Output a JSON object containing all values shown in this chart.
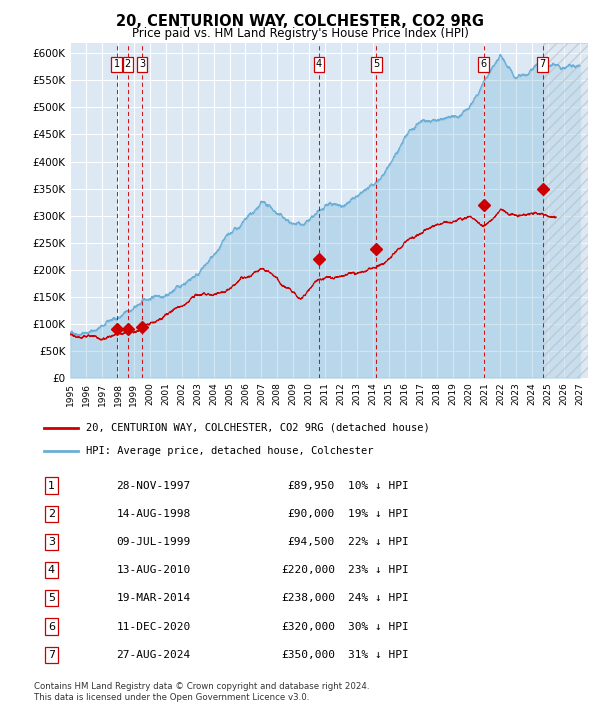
{
  "title1": "20, CENTURION WAY, COLCHESTER, CO2 9RG",
  "title2": "Price paid vs. HM Land Registry's House Price Index (HPI)",
  "bg_color": "#dce9f5",
  "hpi_color": "#6baed6",
  "price_color": "#cc0000",
  "dashed_color": "#cc0000",
  "ylim": [
    0,
    620000
  ],
  "yticks": [
    0,
    50000,
    100000,
    150000,
    200000,
    250000,
    300000,
    350000,
    400000,
    450000,
    500000,
    550000,
    600000
  ],
  "xlim_start": 1995.0,
  "xlim_end": 2027.5,
  "sales": [
    {
      "num": 1,
      "date": "28-NOV-1997",
      "price": 89950,
      "year": 1997.91,
      "hpi_pct": "10%"
    },
    {
      "num": 2,
      "date": "14-AUG-1998",
      "price": 90000,
      "year": 1998.62,
      "hpi_pct": "19%"
    },
    {
      "num": 3,
      "date": "09-JUL-1999",
      "price": 94500,
      "year": 1999.52,
      "hpi_pct": "22%"
    },
    {
      "num": 4,
      "date": "13-AUG-2010",
      "price": 220000,
      "year": 2010.62,
      "hpi_pct": "23%"
    },
    {
      "num": 5,
      "date": "19-MAR-2014",
      "price": 238000,
      "year": 2014.21,
      "hpi_pct": "24%"
    },
    {
      "num": 6,
      "date": "11-DEC-2020",
      "price": 320000,
      "year": 2020.95,
      "hpi_pct": "30%"
    },
    {
      "num": 7,
      "date": "27-AUG-2024",
      "price": 350000,
      "year": 2024.65,
      "hpi_pct": "31%"
    }
  ],
  "legend_line1": "20, CENTURION WAY, COLCHESTER, CO2 9RG (detached house)",
  "legend_line2": "HPI: Average price, detached house, Colchester",
  "footer1": "Contains HM Land Registry data © Crown copyright and database right 2024.",
  "footer2": "This data is licensed under the Open Government Licence v3.0."
}
